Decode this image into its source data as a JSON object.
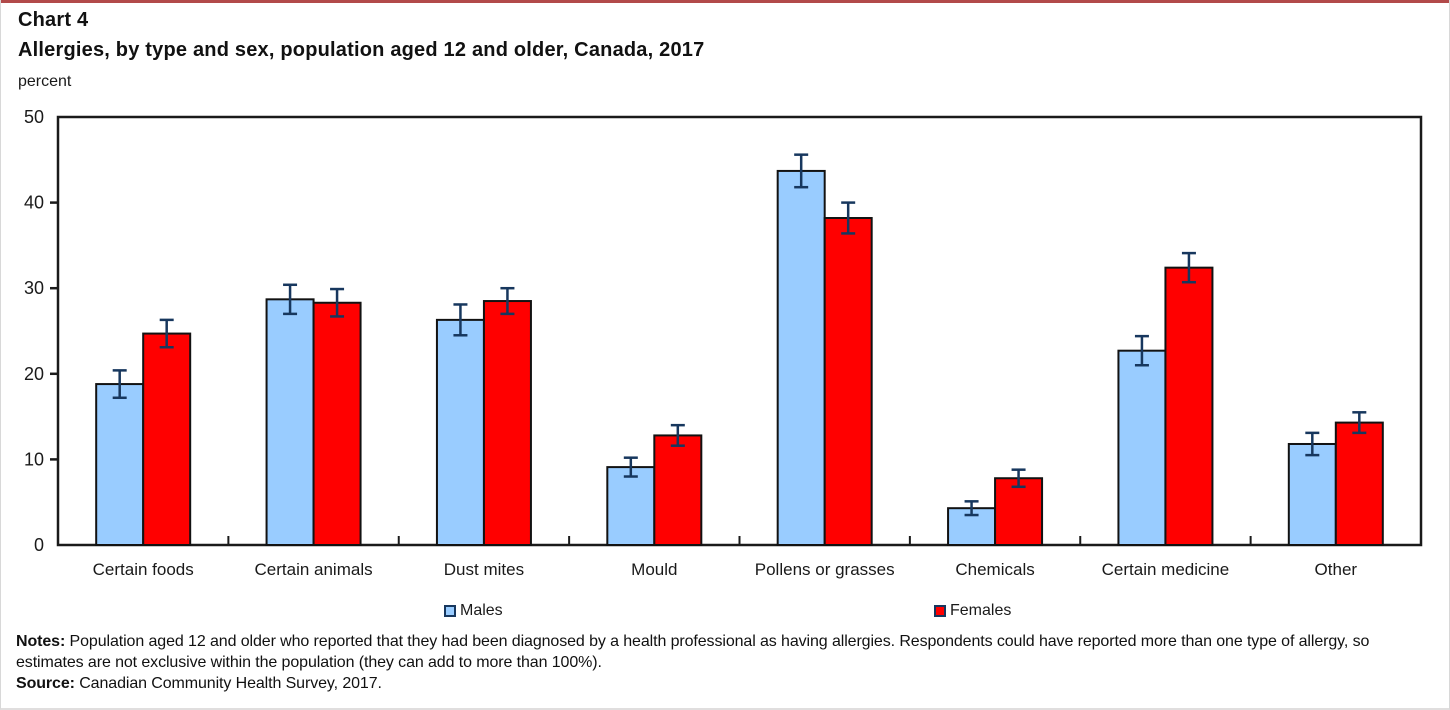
{
  "page": {
    "top_accent_color": "#b24a4a",
    "background_color": "#ffffff"
  },
  "header": {
    "chart_label": "Chart 4",
    "title": "Allergies, by type and sex, population aged 12 and older, Canada, 2017",
    "axis_unit_label": "percent"
  },
  "chart_data": {
    "type": "bar",
    "title": "Allergies, by type and sex, population aged 12 and older, Canada, 2017",
    "xlabel": "",
    "ylabel": "percent",
    "ylim": [
      0,
      50
    ],
    "yticks": [
      0,
      10,
      20,
      30,
      40,
      50
    ],
    "grid": false,
    "legend_position": "bottom",
    "error_bars": true,
    "categories": [
      "Certain foods",
      "Certain animals",
      "Dust mites",
      "Mould",
      "Pollens or grasses",
      "Chemicals",
      "Certain medicine",
      "Other"
    ],
    "series": [
      {
        "name": "Males",
        "color": "#99ccff",
        "values": [
          18.8,
          28.7,
          26.3,
          9.1,
          43.7,
          4.3,
          22.7,
          11.8
        ],
        "error": [
          1.6,
          1.7,
          1.8,
          1.1,
          1.9,
          0.8,
          1.7,
          1.3
        ]
      },
      {
        "name": "Females",
        "color": "#ff0000",
        "values": [
          24.7,
          28.3,
          28.5,
          12.8,
          38.2,
          7.8,
          32.4,
          14.3
        ],
        "error": [
          1.6,
          1.6,
          1.5,
          1.2,
          1.8,
          1.0,
          1.7,
          1.2
        ]
      }
    ],
    "bar_outline_color": "#121212",
    "error_bar_color": "#17375e",
    "axis_color": "#1a1a1a",
    "tick_label_color": "#1a1a1a"
  },
  "footer": {
    "notes_label": "Notes:",
    "notes_text": " Population aged 12 and older who reported that they had been diagnosed by a health professional as having allergies. Respondents could have reported more than one type of allergy, so estimates are not exclusive within the population (they can add to more than 100%).",
    "source_label": "Source:",
    "source_text": " Canadian Community Health Survey, 2017."
  }
}
